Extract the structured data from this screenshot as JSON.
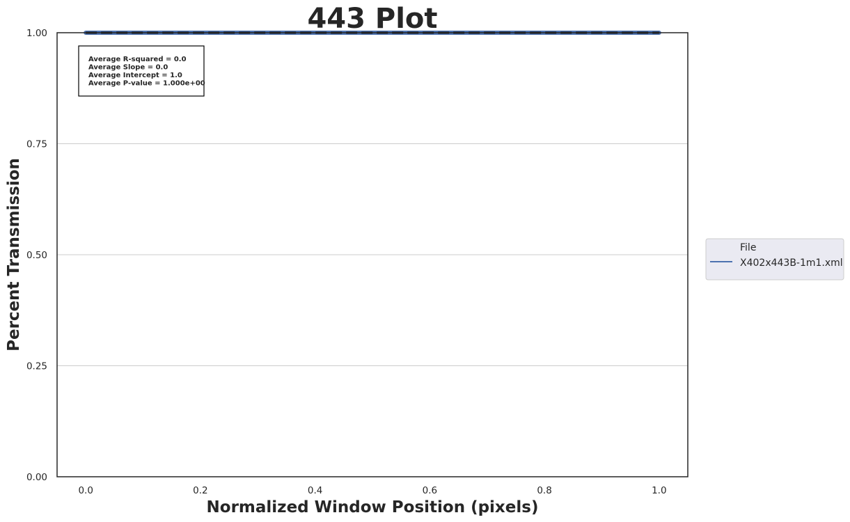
{
  "chart_data": {
    "type": "line",
    "title": "443 Plot",
    "xlabel": "Normalized Window Position (pixels)",
    "ylabel": "Percent Transmission",
    "xlim": [
      -0.05,
      1.05
    ],
    "ylim": [
      0.0,
      1.0
    ],
    "xticks": [
      "0.0",
      "0.2",
      "0.4",
      "0.6",
      "0.8",
      "1.0"
    ],
    "yticks": [
      "0.00",
      "0.25",
      "0.50",
      "0.75",
      "1.00"
    ],
    "grid": "y-only",
    "legend": {
      "placement": "outside-right",
      "title": "File",
      "entries": [
        "X402x443B-1m1.xml"
      ]
    },
    "series": [
      {
        "name": "X402x443B-1m1.xml",
        "color": "#4c72b0",
        "x": [
          0.0,
          1.0
        ],
        "y": [
          1.0,
          1.0
        ]
      }
    ],
    "regression_line": {
      "color": "#1a1a1a",
      "style": "dashed",
      "x": [
        0.0,
        1.0
      ],
      "y": [
        1.0,
        1.0
      ]
    },
    "stats_box": [
      "Average R-squared = 0.0",
      "Average Slope = 0.0",
      "Average Intercept = 1.0",
      "Average P-value = 1.000e+00"
    ]
  }
}
